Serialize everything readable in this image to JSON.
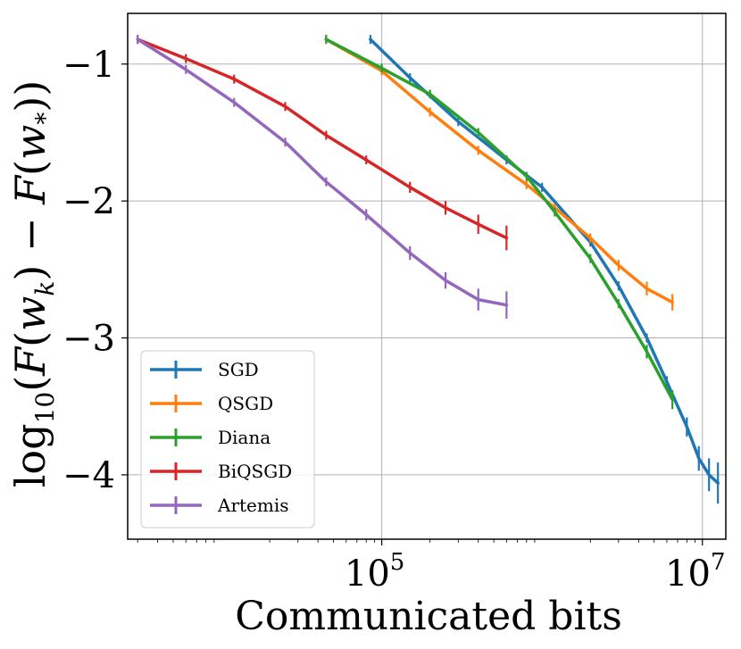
{
  "chart_data": {
    "type": "line",
    "title": "",
    "xlabel": "Communicated bits",
    "ylabel": "log10(F(w_k) − F(w_*))",
    "xscale": "log",
    "xlim": [
      2600,
      14000000
    ],
    "ylim": [
      -4.47,
      -0.63
    ],
    "x_ticks": [
      {
        "value": 100000,
        "label": "10^5"
      },
      {
        "value": 10000000,
        "label": "10^7"
      }
    ],
    "y_ticks": [
      {
        "value": -1,
        "label": "−1"
      },
      {
        "value": -2,
        "label": "−2"
      },
      {
        "value": -3,
        "label": "−3"
      },
      {
        "value": -4,
        "label": "−4"
      }
    ],
    "grid": true,
    "legend_position": "lower-left",
    "series": [
      {
        "name": "SGD",
        "color": "#1f77b4",
        "x": [
          85000,
          150000,
          300000,
          600000,
          1000000,
          2000000,
          3000000,
          4500000,
          6000000,
          8000000,
          9500000,
          11000000,
          12500000
        ],
        "y": [
          -0.82,
          -1.1,
          -1.42,
          -1.7,
          -1.9,
          -2.3,
          -2.62,
          -3.0,
          -3.32,
          -3.65,
          -3.88,
          -4.0,
          -4.06
        ],
        "err": [
          0,
          0,
          0,
          0,
          0,
          0,
          0,
          0.02,
          0.04,
          0.07,
          0.09,
          0.12,
          0.15
        ]
      },
      {
        "name": "QSGD",
        "color": "#ff7f0e",
        "x": [
          45000,
          100000,
          200000,
          400000,
          800000,
          1200000,
          2000000,
          3000000,
          4500000,
          6500000
        ],
        "y": [
          -0.82,
          -1.05,
          -1.35,
          -1.63,
          -1.88,
          -2.05,
          -2.27,
          -2.47,
          -2.64,
          -2.74
        ],
        "err": [
          0,
          0,
          0,
          0,
          0.01,
          0.02,
          0.03,
          0.04,
          0.05,
          0.06
        ]
      },
      {
        "name": "Diana",
        "color": "#2ca02c",
        "x": [
          45000,
          100000,
          200000,
          400000,
          800000,
          1200000,
          2000000,
          3000000,
          4500000,
          6500000
        ],
        "y": [
          -0.82,
          -1.03,
          -1.22,
          -1.5,
          -1.82,
          -2.08,
          -2.42,
          -2.75,
          -3.1,
          -3.45
        ],
        "err": [
          0,
          0,
          0,
          0,
          0,
          0.01,
          0.02,
          0.03,
          0.05,
          0.07
        ]
      },
      {
        "name": "BiQSGD",
        "color": "#d62728",
        "x": [
          3000,
          6000,
          12000,
          25000,
          45000,
          80000,
          150000,
          250000,
          400000,
          600000
        ],
        "y": [
          -0.82,
          -0.96,
          -1.11,
          -1.31,
          -1.52,
          -1.7,
          -1.9,
          -2.05,
          -2.17,
          -2.27
        ],
        "err": [
          0,
          0,
          0.01,
          0.01,
          0.02,
          0.03,
          0.04,
          0.05,
          0.07,
          0.09
        ]
      },
      {
        "name": "Artemis",
        "color": "#9467bd",
        "x": [
          3000,
          6000,
          12000,
          25000,
          45000,
          80000,
          150000,
          250000,
          400000,
          600000
        ],
        "y": [
          -0.82,
          -1.04,
          -1.28,
          -1.57,
          -1.86,
          -2.1,
          -2.38,
          -2.58,
          -2.72,
          -2.76
        ],
        "err": [
          0,
          0,
          0.01,
          0.02,
          0.03,
          0.04,
          0.05,
          0.06,
          0.08,
          0.1
        ]
      }
    ]
  }
}
